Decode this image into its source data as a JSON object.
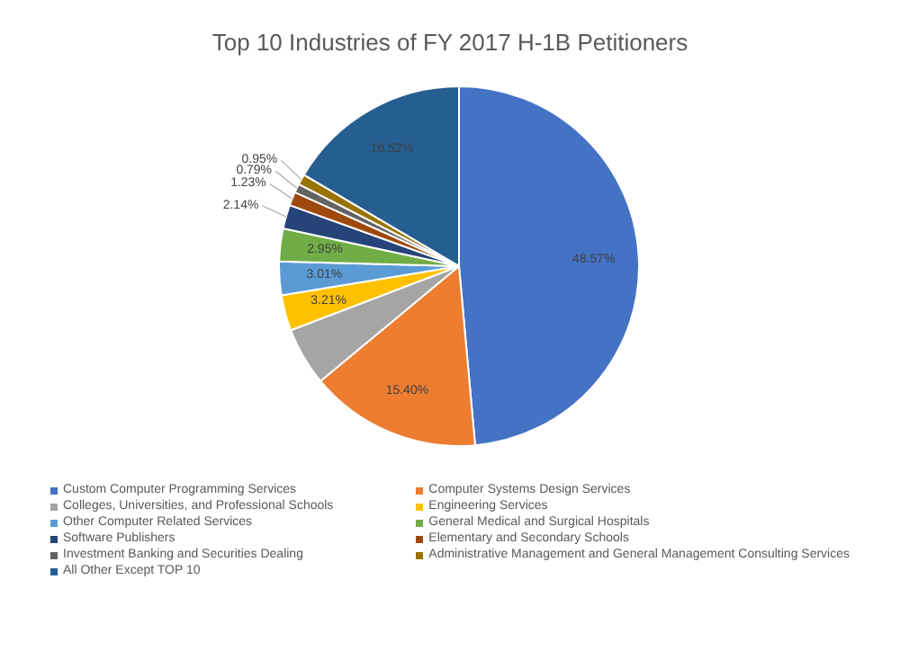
{
  "chart_data": {
    "type": "pie",
    "title": "Top 10 Industries of FY 2017 H-1B Petitioners",
    "categories": [
      "Custom Computer Programming Services",
      "Computer Systems Design Services",
      "Colleges, Universities, and Professional Schools",
      "Engineering Services",
      "Other Computer Related Services",
      "General Medical and Surgical Hospitals",
      "Software Publishers",
      "Elementary and Secondary Schools",
      "Investment Banking and Securities Dealing",
      "Administrative Management and General Management Consulting Services",
      "All Other Except TOP 10"
    ],
    "values": [
      48.57,
      15.4,
      5.23,
      3.21,
      3.01,
      2.95,
      2.14,
      1.23,
      0.79,
      0.95,
      16.52
    ],
    "colors": [
      "#4472c4",
      "#ed7d31",
      "#a5a5a5",
      "#ffc000",
      "#5b9bd5",
      "#70ad47",
      "#264478",
      "#9e480e",
      "#636363",
      "#997300",
      "#255e91"
    ],
    "value_labels": [
      "48.57%",
      "15.40%",
      null,
      "3.21%",
      "3.01%",
      "2.95%",
      "2.14%",
      "1.23%",
      "0.79%",
      "0.95%",
      "16.52%"
    ],
    "legend": "bottom"
  }
}
